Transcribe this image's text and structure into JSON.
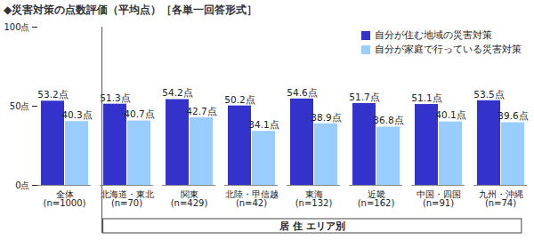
{
  "chart_data": {
    "type": "bar",
    "title": "◆災害対策の点数評価（平均点）［各単一回答形式］",
    "categories": [
      "全体",
      "北海道・東北",
      "関東",
      "北陸・甲信越",
      "東海",
      "近畿",
      "中国・四国",
      "九州・沖縄"
    ],
    "category_notes": [
      "(n=1000)",
      "(n=70)",
      "(n=429)",
      "(n=42)",
      "(n=132)",
      "(n=162)",
      "(n=91)",
      "(n=74)"
    ],
    "group_label": {
      "text": "居 住 エリア別",
      "categories": [
        "北海道・東北",
        "関東",
        "北陸・甲信越",
        "東海",
        "近畿",
        "中国・四国",
        "九州・沖縄"
      ]
    },
    "series": [
      {
        "name": "自分が住む地域の災害対策",
        "color": "#3333cc",
        "values": [
          53.2,
          51.3,
          54.2,
          50.2,
          54.6,
          51.7,
          51.1,
          53.5
        ],
        "value_labels": [
          "53.2点",
          "51.3点",
          "54.2点",
          "50.2点",
          "54.6点",
          "51.7点",
          "51.1点",
          "53.5点"
        ]
      },
      {
        "name": "自分が家庭で行っている災害対策",
        "color": "#99ccff",
        "values": [
          40.3,
          40.7,
          42.7,
          34.1,
          38.9,
          36.8,
          40.1,
          39.6
        ],
        "value_labels": [
          "40.3点",
          "40.7点",
          "42.7点",
          "34.1点",
          "38.9点",
          "36.8点",
          "40.1点",
          "39.6点"
        ]
      }
    ],
    "ylim": [
      0,
      100
    ],
    "yticks": [
      {
        "value": 0,
        "label": "0点"
      },
      {
        "value": 50,
        "label": "50点"
      },
      {
        "value": 100,
        "label": "100点"
      }
    ],
    "grid": false,
    "legend": "top-right",
    "data_labels": true
  }
}
